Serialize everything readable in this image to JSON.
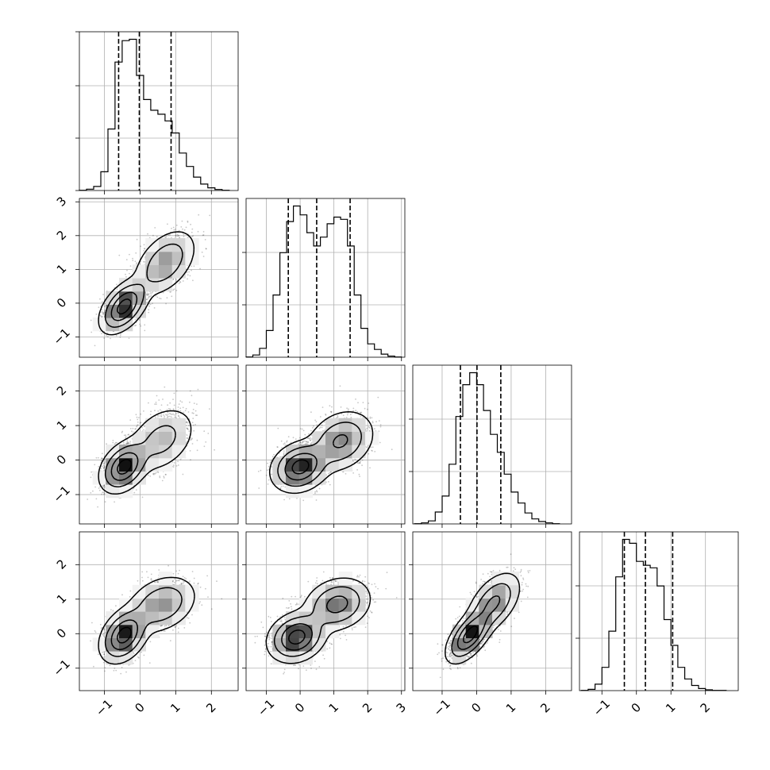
{
  "chart_data": {
    "type": "corner",
    "dimensions": 4,
    "grid": true,
    "colors": {
      "line": "#000000",
      "grid": "#b0b0b0",
      "points": "#000000",
      "background": "#ffffff"
    },
    "axes": [
      {
        "range": [
          -1.7,
          2.75
        ],
        "ticks": [
          -1,
          0,
          1,
          2
        ],
        "tick_labels": [
          "−1",
          "0",
          "1",
          "2"
        ]
      },
      {
        "range": [
          -1.6,
          3.1
        ],
        "ticks": [
          -1,
          0,
          1,
          2,
          3
        ],
        "tick_labels": [
          "−1",
          "0",
          "1",
          "2",
          "3"
        ]
      },
      {
        "range": [
          -1.85,
          2.75
        ],
        "ticks": [
          -1,
          0,
          1,
          2
        ],
        "tick_labels": [
          "−1",
          "0",
          "1",
          "2"
        ]
      },
      {
        "range": [
          -1.65,
          2.95
        ],
        "ticks": [
          -1,
          0,
          1,
          2
        ],
        "tick_labels": [
          "−1",
          "0",
          "1",
          "2"
        ]
      }
    ],
    "marginals": [
      {
        "bin_edges": [
          -1.7,
          -1.5,
          -1.3,
          -1.1,
          -0.9,
          -0.7,
          -0.5,
          -0.3,
          -0.1,
          0.1,
          0.3,
          0.5,
          0.7,
          0.9,
          1.1,
          1.3,
          1.5,
          1.7,
          1.9,
          2.1,
          2.3,
          2.5
        ],
        "counts": [
          1,
          5,
          15,
          70,
          230,
          480,
          560,
          565,
          430,
          340,
          300,
          285,
          260,
          215,
          140,
          90,
          50,
          24,
          10,
          4,
          1
        ],
        "quantiles": [
          -0.6,
          -0.02,
          0.87
        ]
      },
      {
        "bin_edges": [
          -1.6,
          -1.4,
          -1.2,
          -1.0,
          -0.8,
          -0.6,
          -0.4,
          -0.2,
          0.0,
          0.2,
          0.4,
          0.6,
          0.8,
          1.0,
          1.2,
          1.4,
          1.6,
          1.8,
          2.0,
          2.2,
          2.4,
          2.6,
          2.8,
          3.0
        ],
        "counts": [
          1,
          10,
          40,
          120,
          280,
          470,
          610,
          680,
          640,
          560,
          500,
          540,
          600,
          630,
          620,
          500,
          280,
          130,
          60,
          35,
          14,
          5,
          1
        ],
        "quantiles": [
          -0.35,
          0.49,
          1.48
        ]
      },
      {
        "bin_edges": [
          -1.8,
          -1.6,
          -1.4,
          -1.2,
          -1.0,
          -0.8,
          -0.6,
          -0.4,
          -0.2,
          0.0,
          0.2,
          0.4,
          0.6,
          0.8,
          1.0,
          1.2,
          1.4,
          1.6,
          1.8,
          2.0,
          2.2,
          2.4
        ],
        "counts": [
          1,
          5,
          15,
          60,
          140,
          300,
          540,
          700,
          760,
          700,
          570,
          450,
          360,
          250,
          160,
          105,
          55,
          25,
          12,
          5,
          1
        ],
        "quantiles": [
          -0.47,
          0.01,
          0.7
        ]
      },
      {
        "bin_edges": [
          -1.6,
          -1.4,
          -1.2,
          -1.0,
          -0.8,
          -0.6,
          -0.4,
          -0.2,
          0.0,
          0.2,
          0.4,
          0.6,
          0.8,
          1.0,
          1.2,
          1.4,
          1.6,
          1.8,
          2.0,
          2.2,
          2.4,
          2.6
        ],
        "counts": [
          1,
          5,
          25,
          90,
          230,
          440,
          585,
          570,
          500,
          485,
          475,
          405,
          275,
          175,
          90,
          45,
          20,
          8,
          3,
          1,
          1
        ],
        "quantiles": [
          -0.35,
          0.26,
          1.05
        ]
      }
    ],
    "joints": [
      {
        "x": 0,
        "y": 1,
        "modes": [
          {
            "mean": [
              -0.45,
              -0.1
            ],
            "sd": [
              0.3,
              0.35
            ],
            "rho": 0.5,
            "weight": 0.55
          },
          {
            "mean": [
              0.7,
              1.2
            ],
            "sd": [
              0.4,
              0.45
            ],
            "rho": 0.45,
            "weight": 0.45
          }
        ]
      },
      {
        "x": 0,
        "y": 2,
        "modes": [
          {
            "mean": [
              -0.45,
              -0.2
            ],
            "sd": [
              0.3,
              0.33
            ],
            "rho": 0.35,
            "weight": 0.6
          },
          {
            "mean": [
              0.6,
              0.6
            ],
            "sd": [
              0.45,
              0.45
            ],
            "rho": 0.35,
            "weight": 0.4
          }
        ]
      },
      {
        "x": 1,
        "y": 2,
        "modes": [
          {
            "mean": [
              0.0,
              -0.2
            ],
            "sd": [
              0.38,
              0.32
            ],
            "rho": 0.2,
            "weight": 0.55
          },
          {
            "mean": [
              1.2,
              0.55
            ],
            "sd": [
              0.45,
              0.4
            ],
            "rho": 0.25,
            "weight": 0.45
          }
        ]
      },
      {
        "x": 0,
        "y": 3,
        "modes": [
          {
            "mean": [
              -0.45,
              -0.05
            ],
            "sd": [
              0.3,
              0.35
            ],
            "rho": 0.35,
            "weight": 0.55
          },
          {
            "mean": [
              0.6,
              0.85
            ],
            "sd": [
              0.45,
              0.38
            ],
            "rho": 0.3,
            "weight": 0.45
          }
        ]
      },
      {
        "x": 1,
        "y": 3,
        "modes": [
          {
            "mean": [
              -0.1,
              -0.1
            ],
            "sd": [
              0.38,
              0.32
            ],
            "rho": 0.2,
            "weight": 0.55
          },
          {
            "mean": [
              1.1,
              0.85
            ],
            "sd": [
              0.45,
              0.35
            ],
            "rho": 0.2,
            "weight": 0.45
          }
        ]
      },
      {
        "x": 2,
        "y": 3,
        "modes": [
          {
            "mean": [
              -0.2,
              -0.05
            ],
            "sd": [
              0.3,
              0.35
            ],
            "rho": 0.6,
            "weight": 0.55
          },
          {
            "mean": [
              0.5,
              0.9
            ],
            "sd": [
              0.35,
              0.4
            ],
            "rho": 0.5,
            "weight": 0.45
          }
        ]
      }
    ]
  }
}
